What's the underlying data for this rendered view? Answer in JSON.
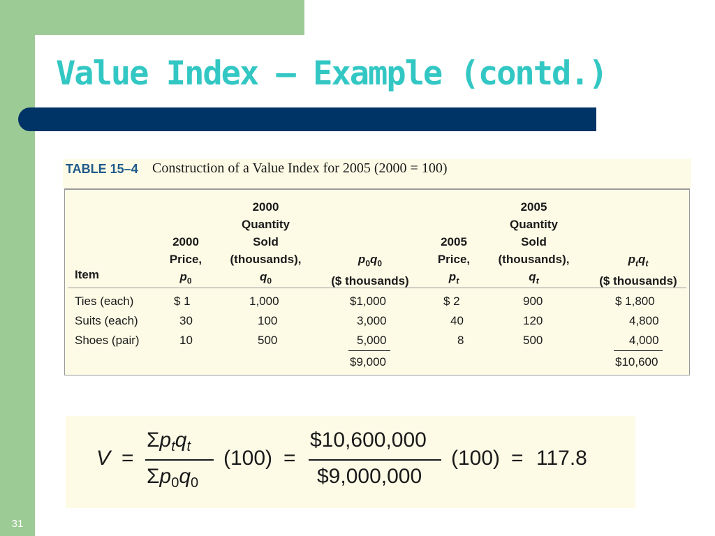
{
  "slide": {
    "title": "Value Index – Example (contd.)",
    "number": "31"
  },
  "table": {
    "label": "TABLE 15–4",
    "caption": "Construction of a Value Index for 2005 (2000 = 100)",
    "headers": {
      "item": "Item",
      "price_2000": [
        "2000",
        "Price,"
      ],
      "qty_2000": [
        "2000",
        "Quantity",
        "Sold",
        "(thousands),"
      ],
      "value_2000_unit": "($ thousands)",
      "price_2005": [
        "2005",
        "Price,"
      ],
      "qty_2005": [
        "2005",
        "Quantity",
        "Sold",
        "(thousands),"
      ],
      "value_2005_unit": "($ thousands)",
      "sym_p": "p",
      "sym_q": "q",
      "sub_0": "0",
      "sub_t": "t"
    },
    "rows": [
      {
        "item": "Ties (each)",
        "p0": "$ 1",
        "q0": "1,000",
        "p0q0": "$1,000",
        "pt": "$ 2",
        "qt": "900",
        "ptqt": "$ 1,800"
      },
      {
        "item": "Suits (each)",
        "p0": "30",
        "q0": "100",
        "p0q0": "3,000",
        "pt": "40",
        "qt": "120",
        "ptqt": "4,800"
      },
      {
        "item": "Shoes (pair)",
        "p0": "10",
        "q0": "500",
        "p0q0": "5,000",
        "pt": "8",
        "qt": "500",
        "ptqt": "4,000"
      }
    ],
    "totals": {
      "p0q0": "$9,000",
      "ptqt": "$10,600"
    }
  },
  "formula": {
    "lhs": "V",
    "equals": "=",
    "num_sigma": "Σ",
    "multiplier": "(100)",
    "numerator_value": "$10,600,000",
    "denominator_value": "$9,000,000",
    "result": "117.8"
  },
  "colors": {
    "accent_green": "#9dcb95",
    "title_teal": "#33c7c4",
    "bar_navy": "#003366",
    "table_bg": "#fdfbe6"
  }
}
